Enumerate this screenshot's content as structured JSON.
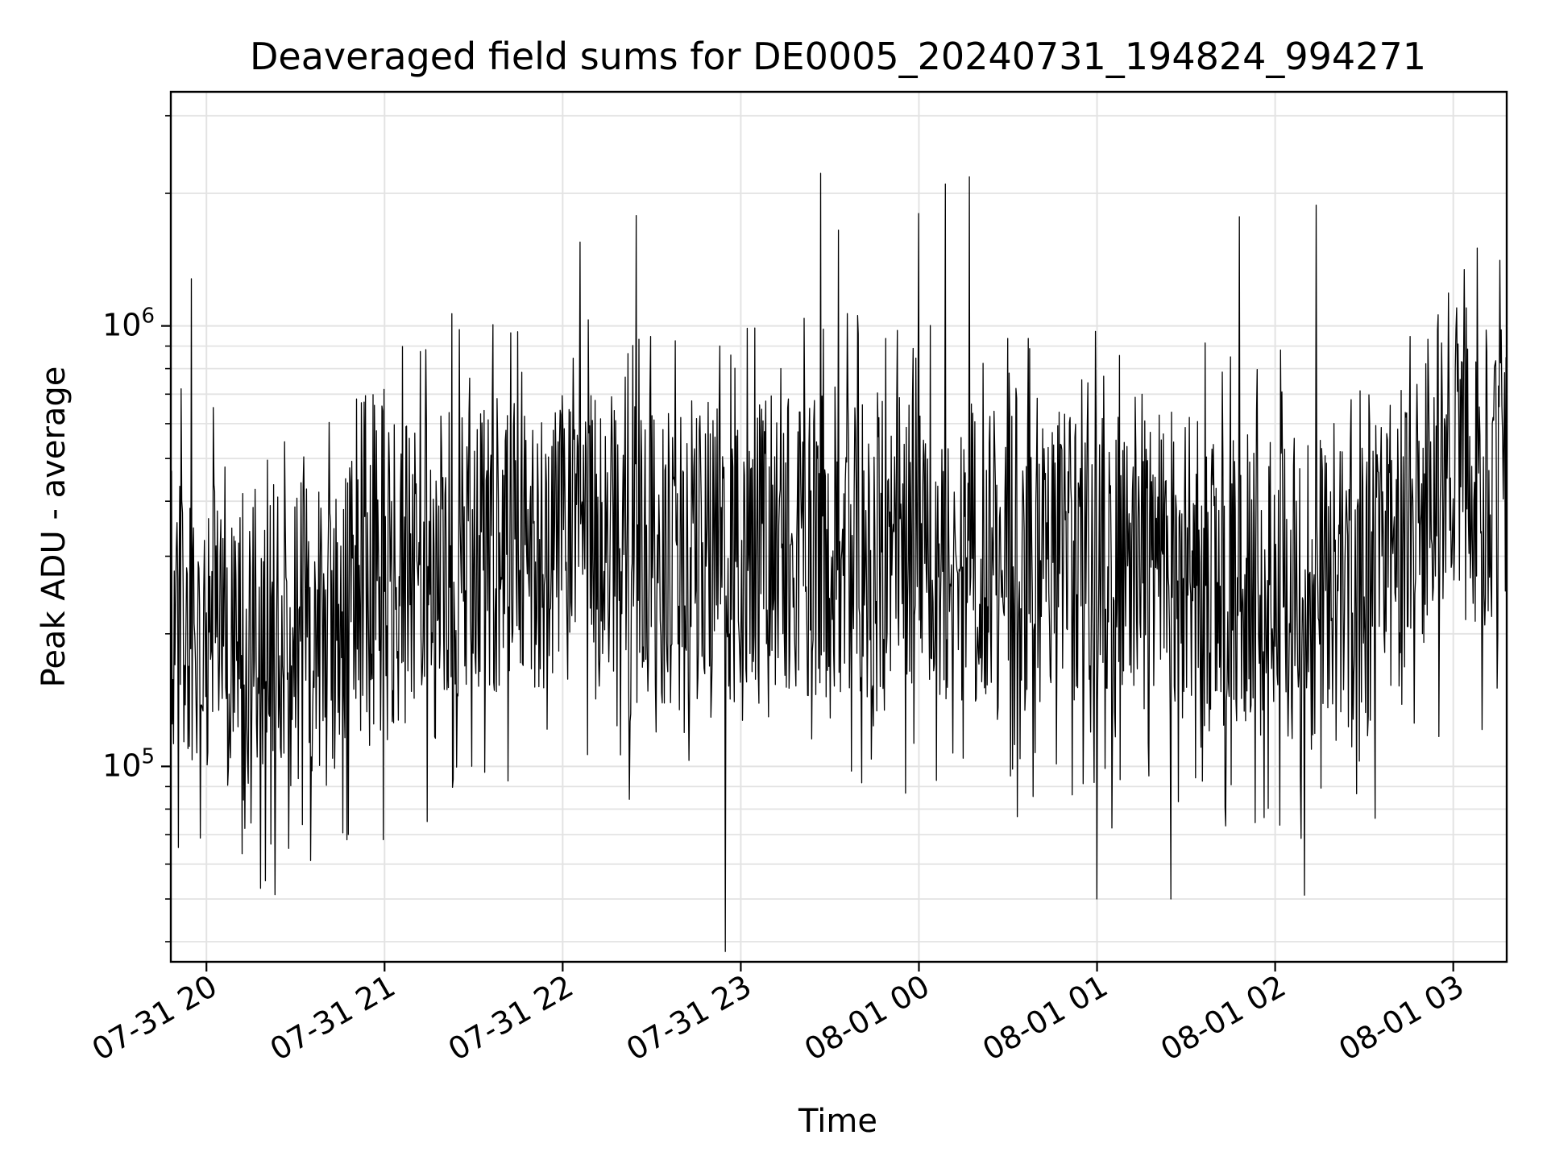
{
  "chart_data": {
    "type": "line",
    "title": "Deaveraged field sums for DE0005_20240731_194824_994271",
    "xlabel": "Time",
    "ylabel": "Peak ADU - average",
    "yscale": "log",
    "ylim": [
      36000,
      3400000
    ],
    "xlim": [
      "2024-07-31 19:48",
      "2024-08-01 03:18"
    ],
    "x_ticks": [
      {
        "value": "2024-07-31 20:00",
        "label": "07-31 20"
      },
      {
        "value": "2024-07-31 21:00",
        "label": "07-31 21"
      },
      {
        "value": "2024-07-31 22:00",
        "label": "07-31 22"
      },
      {
        "value": "2024-07-31 23:00",
        "label": "07-31 23"
      },
      {
        "value": "2024-08-01 00:00",
        "label": "08-01 00"
      },
      {
        "value": "2024-08-01 01:00",
        "label": "08-01 01"
      },
      {
        "value": "2024-08-01 02:00",
        "label": "08-01 02"
      },
      {
        "value": "2024-08-01 03:00",
        "label": "08-01 03"
      }
    ],
    "y_ticks": [
      {
        "value": 100000,
        "base": "10",
        "exp": "5"
      },
      {
        "value": 1000000,
        "base": "10",
        "exp": "6"
      }
    ],
    "grid": true,
    "series": [
      {
        "color": "#000000",
        "envelope": {
          "x": [
            "2024-07-31 19:48",
            "2024-07-31 20:00",
            "2024-07-31 20:20",
            "2024-07-31 20:40",
            "2024-07-31 21:00",
            "2024-07-31 21:30",
            "2024-07-31 22:00",
            "2024-07-31 22:30",
            "2024-07-31 23:00",
            "2024-07-31 23:30",
            "2024-08-01 00:00",
            "2024-08-01 00:30",
            "2024-08-01 01:00",
            "2024-08-01 01:30",
            "2024-08-01 02:00",
            "2024-08-01 02:30",
            "2024-08-01 02:45",
            "2024-08-01 03:00",
            "2024-08-01 03:18"
          ],
          "y": [
            220000,
            200000,
            190000,
            210000,
            270000,
            330000,
            320000,
            310000,
            310000,
            320000,
            320000,
            300000,
            290000,
            280000,
            270000,
            250000,
            380000,
            500000,
            470000
          ]
        },
        "spikes": [
          {
            "x": "2024-07-31 19:55",
            "y": 1280000
          },
          {
            "x": "2024-07-31 20:20",
            "y": 55000
          },
          {
            "x": "2024-07-31 21:45",
            "y": 970000
          },
          {
            "x": "2024-07-31 22:06",
            "y": 1550000
          },
          {
            "x": "2024-07-31 22:25",
            "y": 1780000
          },
          {
            "x": "2024-07-31 22:55",
            "y": 38000
          },
          {
            "x": "2024-07-31 23:27",
            "y": 2220000
          },
          {
            "x": "2024-07-31 23:33",
            "y": 1650000
          },
          {
            "x": "2024-08-01 00:00",
            "y": 1800000
          },
          {
            "x": "2024-08-01 00:09",
            "y": 2100000
          },
          {
            "x": "2024-08-01 00:17",
            "y": 2180000
          },
          {
            "x": "2024-08-01 01:00",
            "y": 50000
          },
          {
            "x": "2024-08-01 01:25",
            "y": 50000
          },
          {
            "x": "2024-08-01 01:48",
            "y": 1770000
          },
          {
            "x": "2024-08-01 02:10",
            "y": 51000
          },
          {
            "x": "2024-08-01 02:14",
            "y": 1880000
          },
          {
            "x": "2024-08-01 02:55",
            "y": 1060000
          }
        ],
        "noise": {
          "spread_lo": 0.45,
          "spread_hi": 1.9,
          "samples_per_hour": 260,
          "seed": 20240731
        }
      }
    ]
  }
}
